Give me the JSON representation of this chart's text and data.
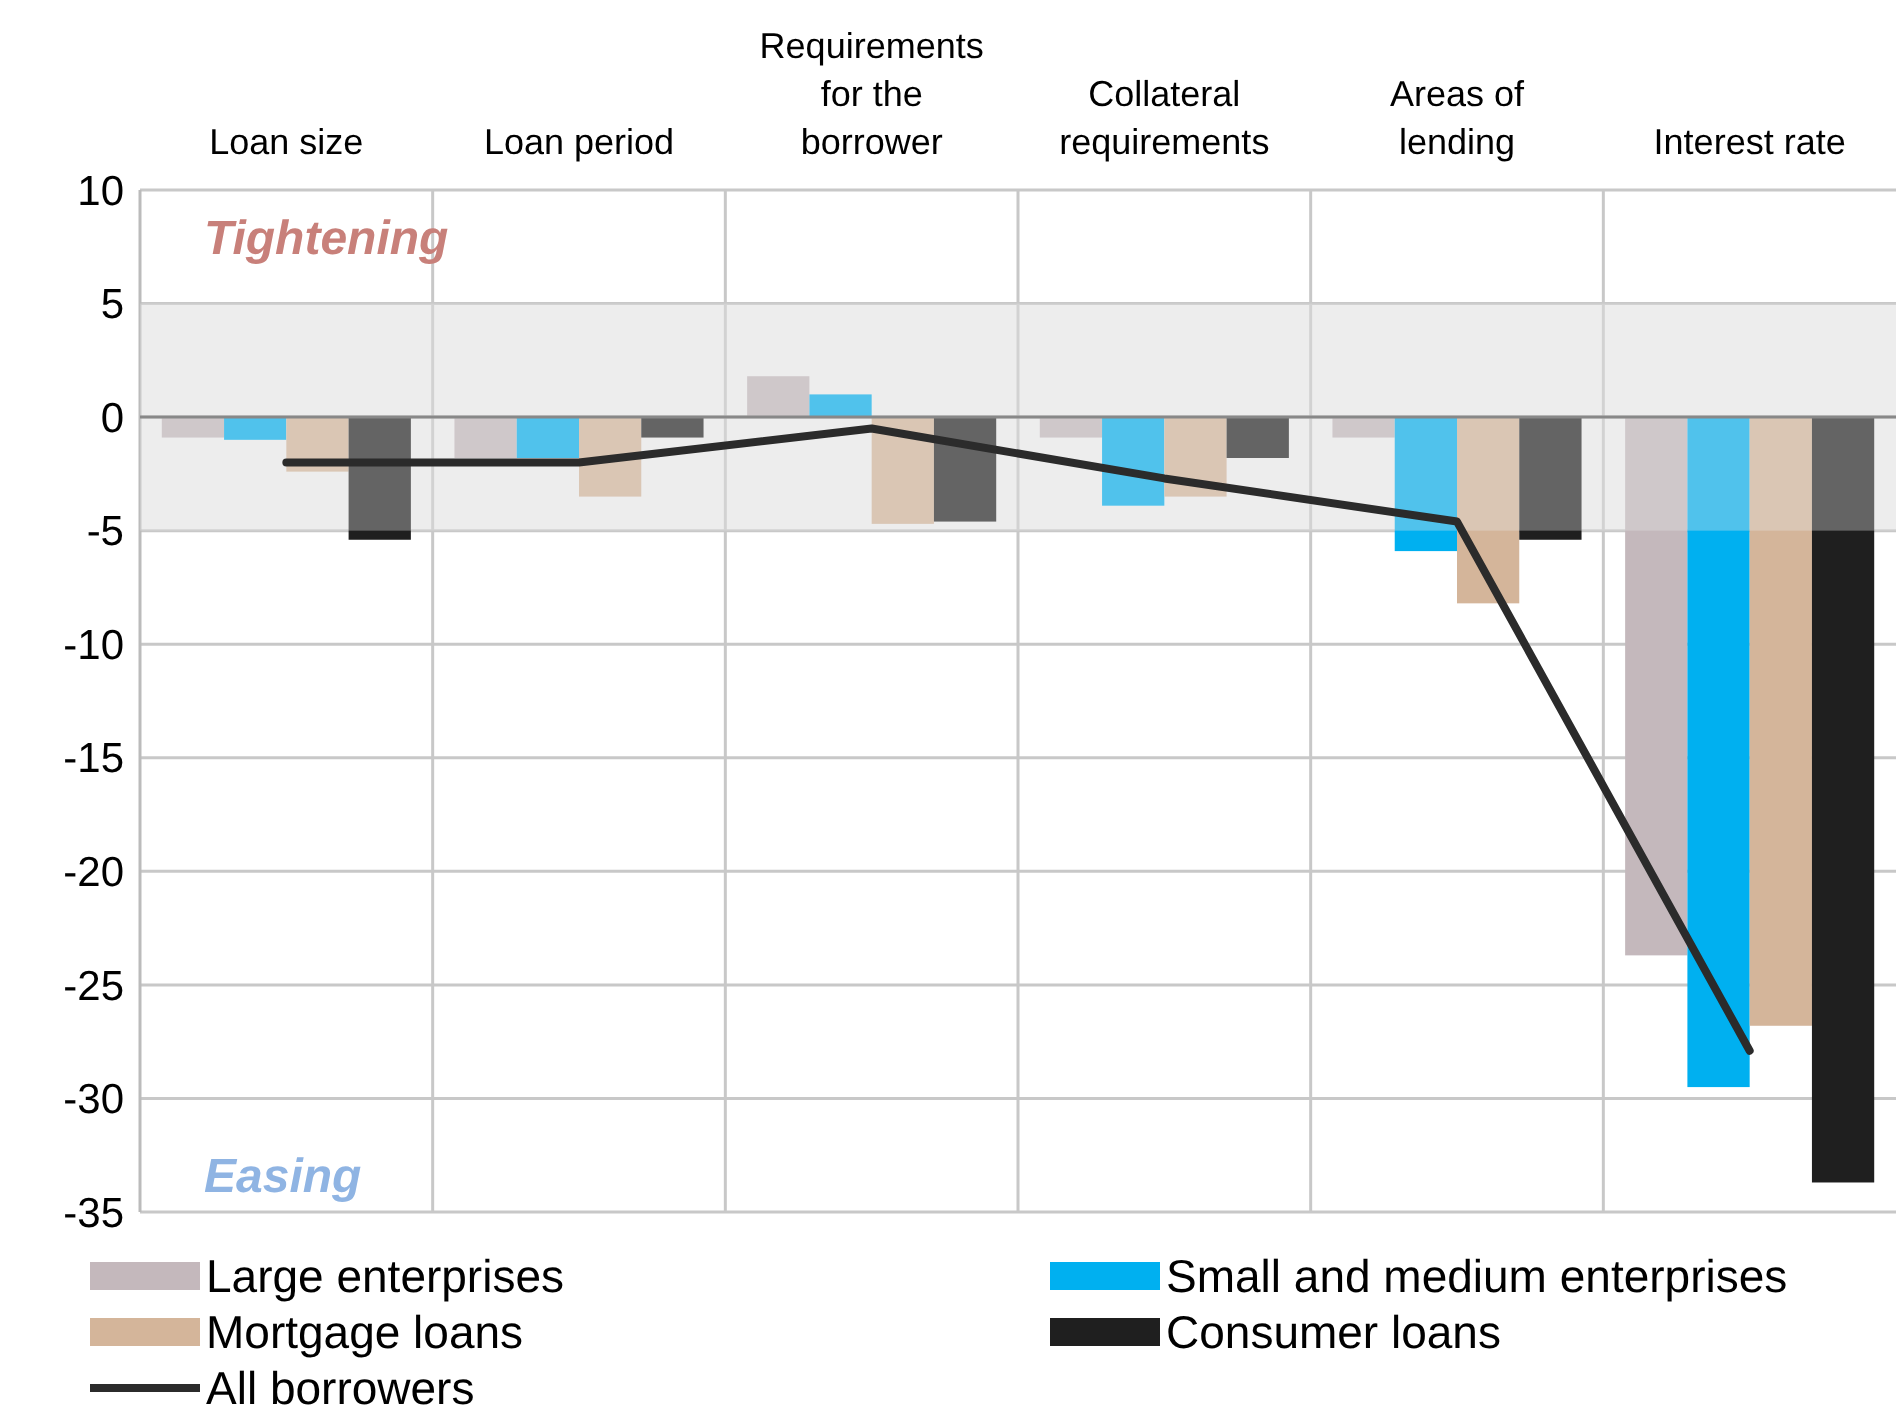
{
  "chart_data": {
    "type": "bar",
    "categories": [
      "Loan size",
      "Loan period",
      "Requirements for the borrower",
      "Collateral requirements",
      "Areas of lending",
      "Interest rate"
    ],
    "series": [
      {
        "name": "Large enterprises",
        "color": "#c4b8bc",
        "values": [
          -0.9,
          -1.8,
          1.8,
          -0.9,
          -0.9,
          -23.7
        ]
      },
      {
        "name": "Small and medium enterprises",
        "color": "#00b0f0",
        "values": [
          -1.0,
          -1.8,
          1.0,
          -3.9,
          -5.9,
          -29.5
        ]
      },
      {
        "name": "Mortgage loans",
        "color": "#d4b59a",
        "values": [
          -2.4,
          -3.5,
          -4.7,
          -3.5,
          -8.2,
          -26.8
        ]
      },
      {
        "name": "Consumer loans",
        "color": "#1f1f1f",
        "values": [
          -5.4,
          -0.9,
          -4.6,
          -1.8,
          -5.4,
          -33.7
        ]
      },
      {
        "name": "All borrowers",
        "type": "line",
        "color": "#2b2b2b",
        "values": [
          -2.0,
          -2.0,
          -0.5,
          -2.7,
          -4.6,
          -27.9
        ]
      }
    ],
    "ylim": [
      -35,
      10
    ],
    "yticks": [
      -35,
      -30,
      -25,
      -20,
      -15,
      -10,
      -5,
      0,
      5,
      10
    ],
    "bands": [
      {
        "axis": "y",
        "from": -5,
        "to": 5,
        "color": "#e6e6e6"
      }
    ],
    "annotations": [
      "Tightening",
      "Easing"
    ],
    "grid": true,
    "legend": "bottom"
  }
}
